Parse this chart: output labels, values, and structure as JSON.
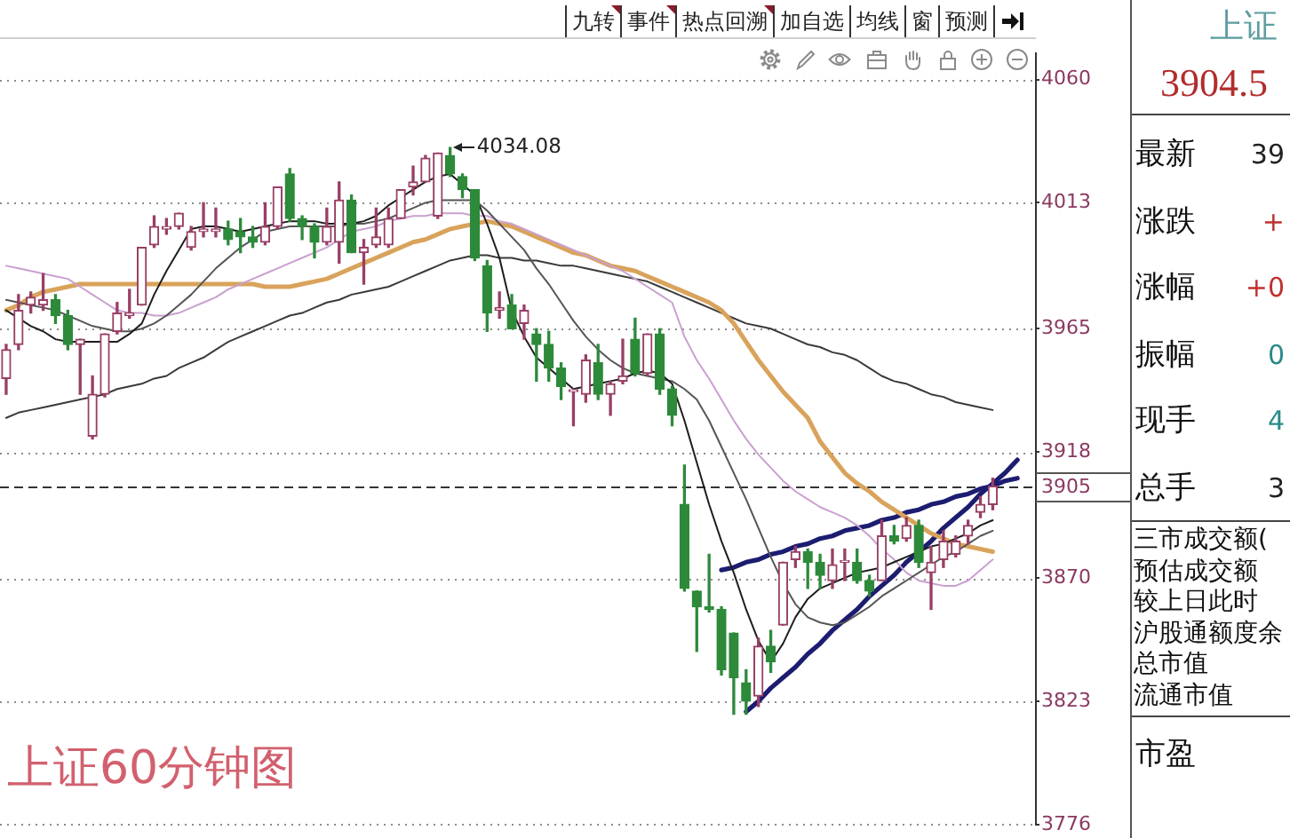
{
  "chart_data": [
    {
      "type": "candlestick",
      "categories": [
        null,
        null,
        null,
        null,
        null,
        null,
        null,
        null,
        null,
        null,
        null,
        null,
        null,
        null,
        null,
        null,
        null,
        null,
        null,
        null,
        null,
        null,
        null,
        null,
        null,
        null,
        null,
        null,
        null,
        null,
        null,
        null,
        null,
        null,
        null,
        null,
        null,
        null,
        null,
        null,
        null,
        null,
        null,
        null,
        null,
        null,
        null,
        null,
        null,
        null,
        null,
        null,
        null,
        null,
        null,
        null,
        null,
        null,
        null,
        null,
        null,
        null,
        null,
        null,
        null,
        null,
        null,
        null,
        null,
        null,
        null,
        null,
        null,
        null,
        null,
        null,
        null,
        null,
        null,
        null,
        null,
        null,
        null,
        null
      ],
      "series": [
        {
          "type": "candlestick",
          "ohlc": [
            [
              3946,
              3959,
              3940,
              3957
            ],
            [
              3959,
              3978,
              3957,
              3972
            ],
            [
              3974,
              3979,
              3971,
              3977
            ],
            [
              3974,
              3986,
              3972,
              3976
            ],
            [
              3976,
              3978,
              3967,
              3970
            ],
            [
              3970,
              3972,
              3957,
              3959
            ],
            [
              3959,
              3961,
              3940,
              3961
            ],
            [
              3924,
              3947,
              3923,
              3940
            ],
            [
              3940,
              3963,
              3939,
              3963
            ],
            [
              3964,
              3975,
              3963,
              3971
            ],
            [
              3970,
              3980,
              3969,
              3971
            ],
            [
              3974,
              3996,
              3974,
              3996
            ],
            [
              3997,
              4008,
              3996,
              4004
            ],
            [
              4003,
              4007,
              4001,
              4004
            ],
            [
              4004,
              4009,
              4003,
              4009
            ],
            [
              3996,
              4004,
              3995,
              4002
            ],
            [
              4002,
              4013,
              4000,
              4003
            ],
            [
              4002,
              4011,
              4000,
              4003
            ],
            [
              4003,
              4006,
              3997,
              3999
            ],
            [
              4002,
              4007,
              3994,
              4000
            ],
            [
              4000,
              4004,
              3996,
              3998
            ],
            [
              3998,
              4013,
              3997,
              4004
            ],
            [
              4004,
              4019,
              4003,
              4019
            ],
            [
              4024,
              4026,
              4006,
              4007
            ],
            [
              4007,
              4008,
              3999,
              4004
            ],
            [
              4004,
              4005,
              3992,
              3998
            ],
            [
              3998,
              4011,
              3997,
              4004
            ],
            [
              3998,
              4021,
              3990,
              4014
            ],
            [
              4014,
              4016,
              3994,
              3994
            ],
            [
              3994,
              3999,
              3982,
              3996
            ],
            [
              3997,
              4011,
              3996,
              4000
            ],
            [
              3997,
              4011,
              3996,
              4007
            ],
            [
              4007,
              4018,
              4007,
              4018
            ],
            [
              4019,
              4027,
              4016,
              4021
            ],
            [
              4021,
              4031,
              4021,
              4030
            ],
            [
              4008,
              4032,
              4007,
              4032
            ],
            [
              4031,
              4034.08,
              4023,
              4024
            ],
            [
              4023,
              4024,
              4015,
              4018
            ],
            [
              4018,
              4018,
              3991,
              3992
            ],
            [
              3989,
              3991,
              3964,
              3971
            ],
            [
              3972,
              3979,
              3969,
              3973
            ],
            [
              3974,
              3978,
              3965,
              3965
            ],
            [
              3967,
              3974,
              3961,
              3972
            ],
            [
              3963,
              3965,
              3945,
              3959
            ],
            [
              3959,
              3964,
              3945,
              3950
            ],
            [
              3950,
              3952,
              3938,
              3943
            ],
            [
              3941,
              3942,
              3928,
              3941
            ],
            [
              3940,
              3955,
              3937,
              3953
            ],
            [
              3952,
              3959,
              3938,
              3940
            ],
            [
              3940,
              3945,
              3932,
              3944
            ],
            [
              3945,
              3961,
              3944,
              3947
            ],
            [
              3961,
              3969,
              3947,
              3948
            ],
            [
              3948,
              3963,
              3947,
              3963
            ],
            [
              3963,
              3965,
              3940,
              3942
            ],
            [
              3942,
              3943,
              3928,
              3932
            ],
            [
              3898,
              3913,
              3865,
              3866
            ],
            [
              3865,
              3865,
              3842,
              3859
            ],
            [
              3859,
              3879,
              3857,
              3858
            ],
            [
              3858,
              3859,
              3833,
              3835
            ],
            [
              3849,
              3849,
              3818,
              3832
            ],
            [
              3830,
              3835,
              3818,
              3823
            ],
            [
              3825,
              3847,
              3821,
              3844
            ],
            [
              3844,
              3850,
              3834,
              3838
            ],
            [
              3852,
              3876,
              3852,
              3876
            ],
            [
              3877,
              3882,
              3874,
              3880
            ],
            [
              3880,
              3881,
              3866,
              3876
            ],
            [
              3876,
              3879,
              3866,
              3871
            ],
            [
              3869,
              3881,
              3866,
              3875
            ],
            [
              3876,
              3881,
              3869,
              3876
            ],
            [
              3876,
              3881,
              3868,
              3869
            ],
            [
              3869,
              3871,
              3863,
              3865
            ],
            [
              3869,
              3892,
              3869,
              3886
            ],
            [
              3886,
              3890,
              3883,
              3884
            ],
            [
              3885,
              3893,
              3884,
              3890
            ],
            [
              3890,
              3892,
              3874,
              3876
            ],
            [
              3872,
              3882,
              3858,
              3876
            ],
            [
              3877,
              3888,
              3874,
              3884
            ],
            [
              3879,
              3886,
              3878,
              3884
            ],
            [
              3886,
              3892,
              3883,
              3890
            ],
            [
              3895,
              3901,
              3893,
              3898
            ],
            [
              3898,
              3908,
              3896,
              3905
            ],
            null,
            null,
            null
          ],
          "colors": [
            "#983f66",
            "#983f66",
            "#983f66",
            "#983f66",
            "#2d8a3a",
            "#2d8a3a",
            "#983f66",
            "#983f66",
            "#983f66",
            "#983f66",
            "#983f66",
            "#983f66",
            "#983f66",
            "#983f66",
            "#983f66",
            "#983f66",
            "#983f66",
            "#983f66",
            "#2d8a3a",
            "#2d8a3a",
            "#2d8a3a",
            "#983f66",
            "#983f66",
            "#2d8a3a",
            "#2d8a3a",
            "#2d8a3a",
            "#983f66",
            "#983f66",
            "#2d8a3a",
            "#983f66",
            "#983f66",
            "#983f66",
            "#983f66",
            "#983f66",
            "#983f66",
            "#983f66",
            "#2d8a3a",
            "#2d8a3a",
            "#2d8a3a",
            "#2d8a3a",
            "#983f66",
            "#2d8a3a",
            "#983f66",
            "#2d8a3a",
            "#2d8a3a",
            "#2d8a3a",
            "#983f66",
            "#983f66",
            "#2d8a3a",
            "#983f66",
            "#983f66",
            "#2d8a3a",
            "#983f66",
            "#2d8a3a",
            "#2d8a3a",
            "#2d8a3a",
            "#2d8a3a",
            "#2d8a3a",
            "#2d8a3a",
            "#2d8a3a",
            "#2d8a3a",
            "#983f66",
            "#2d8a3a",
            "#983f66",
            "#983f66",
            "#2d8a3a",
            "#2d8a3a",
            "#983f66",
            "#983f66",
            "#2d8a3a",
            "#2d8a3a",
            "#983f66",
            "#2d8a3a",
            "#983f66",
            "#2d8a3a",
            "#983f66",
            "#983f66",
            "#983f66",
            "#983f66",
            "#983f66",
            "#983f66",
            null,
            null,
            null
          ]
        },
        {
          "type": "line",
          "color": "#1e1e1e",
          "values": [
            3972,
            3969,
            3966,
            3964,
            3961,
            3960,
            3960,
            3960,
            3960,
            3960,
            3963,
            3967,
            3978,
            3987,
            3995,
            4003,
            4004,
            4004,
            4003,
            4002,
            4003,
            4004,
            4005,
            4006,
            4006,
            4006,
            4005,
            4005,
            4005,
            4006,
            4008,
            4012,
            4015,
            4018,
            4021,
            4023,
            4024,
            4020,
            4016,
            4005,
            3992,
            3972,
            3962,
            3954,
            3950,
            3946,
            3942,
            3943,
            3944,
            3945,
            3946,
            3948,
            3949,
            3948,
            3944,
            3930,
            3914,
            3898,
            3884,
            3872,
            3858,
            3846,
            3838,
            3845,
            3855,
            3862,
            3866,
            3868,
            3870,
            3872,
            3873,
            3874,
            3876,
            3878,
            3880,
            3882,
            3883,
            3885,
            3887,
            3890,
            3892,
            null,
            null,
            null
          ]
        },
        {
          "type": "line",
          "color": "#555555",
          "values": [
            3976,
            3975,
            3974,
            3973,
            3972,
            3970,
            3968,
            3966,
            3965,
            3964,
            3964,
            3965,
            3967,
            3970,
            3974,
            3978,
            3983,
            3988,
            3992,
            3996,
            3999,
            4002,
            4003,
            4004,
            4004,
            4004,
            4004,
            4004,
            4005,
            4005,
            4006,
            4007,
            4009,
            4011,
            4013,
            4014,
            4014,
            4014,
            4014,
            4010,
            4005,
            4000,
            3995,
            3988,
            3982,
            3975,
            3968,
            3962,
            3957,
            3953,
            3950,
            3948,
            3947,
            3946,
            3945,
            3942,
            3938,
            3930,
            3920,
            3910,
            3900,
            3889,
            3878,
            3868,
            3860,
            3855,
            3853,
            3852,
            3853,
            3856,
            3859,
            3863,
            3866,
            3869,
            3872,
            3875,
            3878,
            3880,
            3883,
            3886,
            3888,
            null,
            null,
            null
          ]
        },
        {
          "type": "line",
          "color": "#c9a0cf",
          "values": [
            3989,
            3988,
            3987,
            3986,
            3985,
            3984,
            3981,
            3978,
            3975,
            3972,
            3971,
            3971,
            3970,
            3970,
            3971,
            3973,
            3975,
            3977,
            3980,
            3982,
            3984,
            3986,
            3988,
            3990,
            3992,
            3994,
            3996,
            3999,
            4002,
            4003,
            4004,
            4006,
            4007,
            4008,
            4008,
            4009,
            4009,
            4009,
            4008,
            4008,
            4006,
            4005,
            4003,
            4001,
            3999,
            3997,
            3995,
            3993,
            3991,
            3989,
            3987,
            3984,
            3981,
            3978,
            3975,
            3962,
            3953,
            3946,
            3938,
            3930,
            3923,
            3917,
            3912,
            3907,
            3903,
            3900,
            3897,
            3895,
            3893,
            3890,
            3886,
            3881,
            3877,
            3872,
            3869,
            3868,
            3867,
            3867,
            3869,
            3873,
            3877,
            null,
            null,
            null
          ]
        },
        {
          "type": "line",
          "color": "#d9a35c",
          "values": [
            3972,
            3974,
            3977,
            3979,
            3980,
            3981,
            3982,
            3982,
            3982,
            3982,
            3982,
            3982,
            3982,
            3982,
            3982,
            3982,
            3982,
            3982,
            3982,
            3982,
            3982,
            3981,
            3981,
            3981,
            3982,
            3983,
            3984,
            3986,
            3988,
            3990,
            3992,
            3994,
            3996,
            3998,
            3999,
            4001,
            4003,
            4004,
            4005,
            4006,
            4005,
            4004,
            4002,
            4000,
            3998,
            3996,
            3994,
            3993,
            3991,
            3989,
            3988,
            3987,
            3985,
            3983,
            3981,
            3979,
            3977,
            3975,
            3972,
            3967,
            3960,
            3953,
            3947,
            3941,
            3936,
            3931,
            3922,
            3916,
            3910,
            3906,
            3903,
            3899,
            3896,
            3893,
            3890,
            3887,
            3885,
            3883,
            3882,
            3881,
            3880,
            null,
            null,
            null
          ]
        },
        {
          "type": "line",
          "color": "#3a3a3a",
          "values": [
            3931,
            3933,
            3934,
            3935,
            3936,
            3937,
            3938,
            3939,
            3940,
            3942,
            3943,
            3944,
            3946,
            3947,
            3950,
            3952,
            3954,
            3957,
            3960,
            3962,
            3964,
            3966,
            3968,
            3970,
            3971,
            3973,
            3975,
            3976,
            3978,
            3979,
            3980,
            3981,
            3983,
            3985,
            3987,
            3989,
            3991,
            3992,
            3993,
            3993,
            3992,
            3992,
            3991,
            3991,
            3990,
            3989,
            3989,
            3988,
            3987,
            3986,
            3985,
            3984,
            3983,
            3981,
            3979,
            3977,
            3975,
            3973,
            3971,
            3969,
            3967,
            3966,
            3965,
            3963,
            3961,
            3959,
            3958,
            3956,
            3955,
            3953,
            3950,
            3947,
            3945,
            3944,
            3942,
            3940,
            3939,
            3937,
            3936,
            3935,
            3934,
            null,
            null,
            null
          ]
        },
        {
          "type": "line",
          "color": "#1c1c70",
          "values": [
            null,
            null,
            null,
            null,
            null,
            null,
            null,
            null,
            null,
            null,
            null,
            null,
            null,
            null,
            null,
            null,
            null,
            null,
            null,
            null,
            null,
            null,
            null,
            null,
            null,
            null,
            null,
            null,
            null,
            null,
            null,
            null,
            null,
            null,
            null,
            null,
            null,
            null,
            null,
            null,
            null,
            null,
            null,
            null,
            null,
            null,
            null,
            null,
            null,
            null,
            null,
            null,
            null,
            null,
            null,
            null,
            null,
            null,
            3873,
            3874,
            3876,
            3877,
            3879,
            3880,
            3882,
            3883,
            3885,
            3886,
            3888,
            3889,
            3890,
            3892,
            3893,
            3895,
            3896,
            3898,
            3899,
            3901,
            3902,
            3904,
            3905,
            3907,
            3908,
            null
          ]
        },
        {
          "type": "line",
          "color": "#1c1c70",
          "values": [
            null,
            null,
            null,
            null,
            null,
            null,
            null,
            null,
            null,
            null,
            null,
            null,
            null,
            null,
            null,
            null,
            null,
            null,
            null,
            null,
            null,
            null,
            null,
            null,
            null,
            null,
            null,
            null,
            null,
            null,
            null,
            null,
            null,
            null,
            null,
            null,
            null,
            null,
            null,
            null,
            null,
            null,
            null,
            null,
            null,
            null,
            null,
            null,
            null,
            null,
            null,
            null,
            null,
            null,
            null,
            null,
            null,
            null,
            null,
            null,
            3819,
            3823,
            3828,
            3832,
            3836,
            3841,
            3845,
            3850,
            3854,
            3858,
            3863,
            3867,
            3871,
            3876,
            3880,
            3884,
            3889,
            3893,
            3897,
            3902,
            3906,
            3910,
            3915,
            null
          ]
        }
      ],
      "ylim": [
        3776,
        4070
      ],
      "yticks": [
        3776,
        3823,
        3870,
        3918,
        3965,
        4013,
        4060
      ],
      "grid": "y",
      "tick_labels": "y",
      "ref_lines": [
        {
          "axis": "y",
          "value": 3905,
          "label": "3905",
          "line_style": "dashed"
        }
      ],
      "annotations": [
        "九转",
        "事件",
        "热点回溯",
        "加自选",
        "均线",
        "窗",
        "预测",
        "4034.08",
        "上证60分钟图"
      ]
    },
    {
      "type": "other",
      "title": "上证",
      "subtitle": "3904.5",
      "annotations": [
        "最新",
        "39",
        "涨跌",
        "+",
        "涨幅",
        "+0",
        "振幅",
        "0",
        "现手",
        "4",
        "总手",
        "3",
        "三市成交额(",
        "预估成交额",
        "较上日此时",
        "沪股通额度余",
        "总市值",
        "流通市值",
        "市盈"
      ]
    }
  ]
}
